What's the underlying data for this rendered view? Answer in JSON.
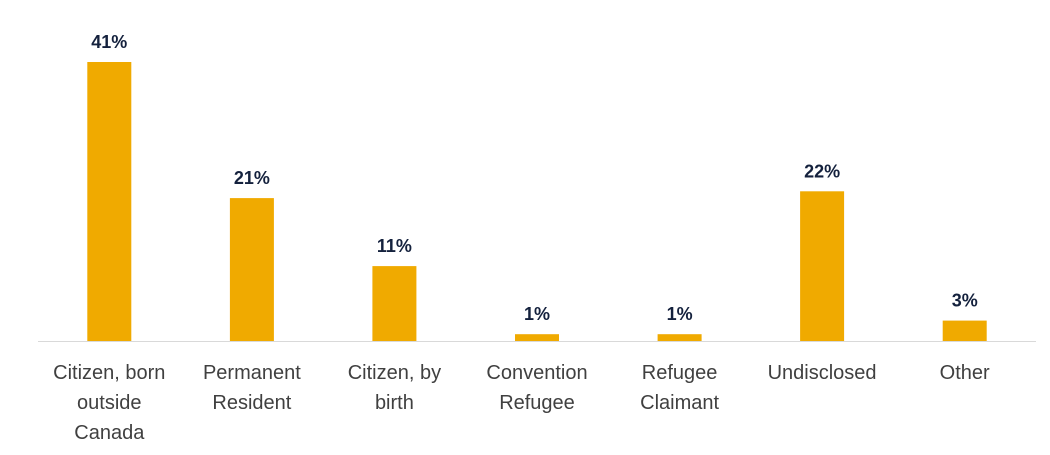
{
  "colors": {
    "bar": "#f0aa00",
    "value_text": "#14213d",
    "category_text": "#404040",
    "axis": "#d9d9d9"
  },
  "chart_data": {
    "type": "bar",
    "title": "",
    "xlabel": "",
    "ylabel": "",
    "ylim": [
      0,
      41
    ],
    "grid": false,
    "legend": "none",
    "categories": [
      "Citizen, born outside Canada",
      "Permanent Resident",
      "Citizen, by birth",
      "Convention Refugee",
      "Refugee Claimant",
      "Undisclosed",
      "Other"
    ],
    "category_label_lines": [
      [
        "Citizen, born",
        "outside",
        "Canada"
      ],
      [
        "Permanent",
        "Resident"
      ],
      [
        "Citizen, by",
        "birth"
      ],
      [
        "Convention",
        "Refugee"
      ],
      [
        "Refugee",
        "Claimant"
      ],
      [
        "Undisclosed"
      ],
      [
        "Other"
      ]
    ],
    "values": [
      41,
      21,
      11,
      1,
      1,
      22,
      3
    ],
    "value_labels": [
      "41%",
      "21%",
      "11%",
      "1%",
      "1%",
      "22%",
      "3%"
    ]
  }
}
